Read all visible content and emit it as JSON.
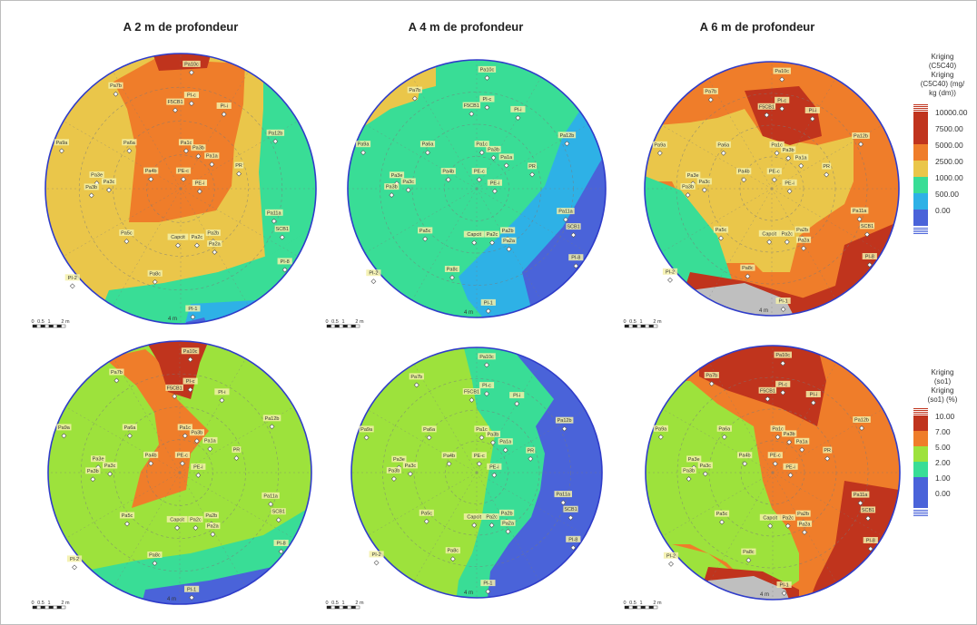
{
  "titles": [
    "A 2 m de profondeur",
    "A 4 m de profondeur",
    "A 6 m de profondeur"
  ],
  "legends": [
    {
      "header_lines": [
        "Kriging",
        "(C5C40)",
        "Kriging",
        "(C5C40) (mg/",
        "kg (dm))"
      ],
      "classes": [
        {
          "label": "10000.00",
          "color": "#c0341d"
        },
        {
          "label": "7500.00",
          "color": "#c0341d"
        },
        {
          "label": "5000.00",
          "color": "#ef7d2a"
        },
        {
          "label": "2500.00",
          "color": "#eac64a"
        },
        {
          "label": "1000.00",
          "color": "#39dd96"
        },
        {
          "label": "500.00",
          "color": "#2eb1e6"
        },
        {
          "label": "0.00",
          "color": "#4a63d9"
        }
      ]
    },
    {
      "header_lines": [
        "Kriging",
        "(so1)",
        "Kriging",
        "(so1) (%)"
      ],
      "classes": [
        {
          "label": "10.00",
          "color": "#c0341d"
        },
        {
          "label": "7.00",
          "color": "#ef7d2a"
        },
        {
          "label": "5.00",
          "color": "#9de23c"
        },
        {
          "label": "2.00",
          "color": "#39dd96"
        },
        {
          "label": "1.00",
          "color": "#4a63d9"
        },
        {
          "label": "0.00",
          "color": "#4a63d9"
        }
      ]
    }
  ],
  "scale_labels": [
    "0",
    "0.5",
    "1",
    "2 m"
  ],
  "ring_label": "4 m",
  "points": [
    {
      "id": "Pa10c",
      "x": 0.08,
      "y": -0.86
    },
    {
      "id": "Pa7b",
      "x": -0.48,
      "y": -0.7
    },
    {
      "id": "PI-c",
      "x": 0.08,
      "y": -0.63
    },
    {
      "id": "F5CB1",
      "x": -0.04,
      "y": -0.58
    },
    {
      "id": "PI-i",
      "x": 0.32,
      "y": -0.55
    },
    {
      "id": "Pa12b",
      "x": 0.7,
      "y": -0.35
    },
    {
      "id": "Pa1c",
      "x": 0.04,
      "y": -0.28
    },
    {
      "id": "Pa3b",
      "x": 0.13,
      "y": -0.24
    },
    {
      "id": "Pa1a",
      "x": 0.23,
      "y": -0.18
    },
    {
      "id": "Pa6a",
      "x": -0.38,
      "y": -0.28
    },
    {
      "id": "Pa9a",
      "x": -0.88,
      "y": -0.28
    },
    {
      "id": "Pa3e",
      "x": -0.62,
      "y": -0.04
    },
    {
      "id": "Pa3c",
      "x": -0.53,
      "y": 0.01
    },
    {
      "id": "Pa3b",
      "x": -0.66,
      "y": 0.05
    },
    {
      "id": "PE-c",
      "x": 0.02,
      "y": -0.07
    },
    {
      "id": "Pa4b",
      "x": -0.22,
      "y": -0.07
    },
    {
      "id": "PE-i",
      "x": 0.14,
      "y": 0.02
    },
    {
      "id": "PR",
      "x": 0.43,
      "y": -0.11
    },
    {
      "id": "Pa11a",
      "x": 0.69,
      "y": 0.24
    },
    {
      "id": "SCB1",
      "x": 0.75,
      "y": 0.36
    },
    {
      "id": "Pa5c",
      "x": -0.4,
      "y": 0.39
    },
    {
      "id": "Capcit",
      "x": -0.02,
      "y": 0.42
    },
    {
      "id": "Pa2c",
      "x": 0.12,
      "y": 0.42
    },
    {
      "id": "Pa2b",
      "x": 0.24,
      "y": 0.39
    },
    {
      "id": "Pa2a",
      "x": 0.25,
      "y": 0.47
    },
    {
      "id": "Pa8c",
      "x": -0.19,
      "y": 0.69
    },
    {
      "id": "PI-8",
      "x": 0.77,
      "y": 0.6
    },
    {
      "id": "PI-2",
      "x": -0.8,
      "y": 0.72
    },
    {
      "id": "PI-1",
      "x": 0.09,
      "y": 0.95
    }
  ]
}
